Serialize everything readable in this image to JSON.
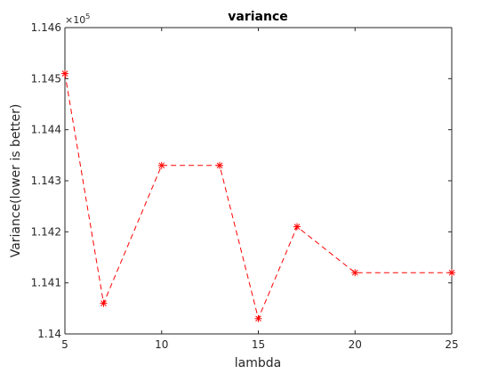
{
  "chart_data": {
    "type": "line",
    "title": "variance",
    "xlabel": "lambda",
    "ylabel": "Variance(lower is better)",
    "y_multiplier_label": "×10",
    "y_multiplier_exponent": "5",
    "xlim": [
      5,
      25
    ],
    "ylim": [
      1.14,
      1.146
    ],
    "x_ticks": [
      5,
      10,
      15,
      20,
      25
    ],
    "x_tick_labels": [
      "5",
      "10",
      "15",
      "20",
      "25"
    ],
    "y_ticks": [
      1.14,
      1.141,
      1.142,
      1.143,
      1.144,
      1.145,
      1.146
    ],
    "y_tick_labels": [
      "1.14",
      "1.141",
      "1.142",
      "1.143",
      "1.144",
      "1.145",
      "1.146"
    ],
    "grid": false,
    "series": [
      {
        "x": [
          5,
          7,
          10,
          13,
          15,
          17,
          20,
          25
        ],
        "y": [
          1.1451,
          1.1406,
          1.1433,
          1.1433,
          1.1403,
          1.1421,
          1.1412,
          1.1412
        ],
        "color": "#ff0000",
        "line_style": "dashed",
        "marker": "asterisk"
      }
    ]
  }
}
